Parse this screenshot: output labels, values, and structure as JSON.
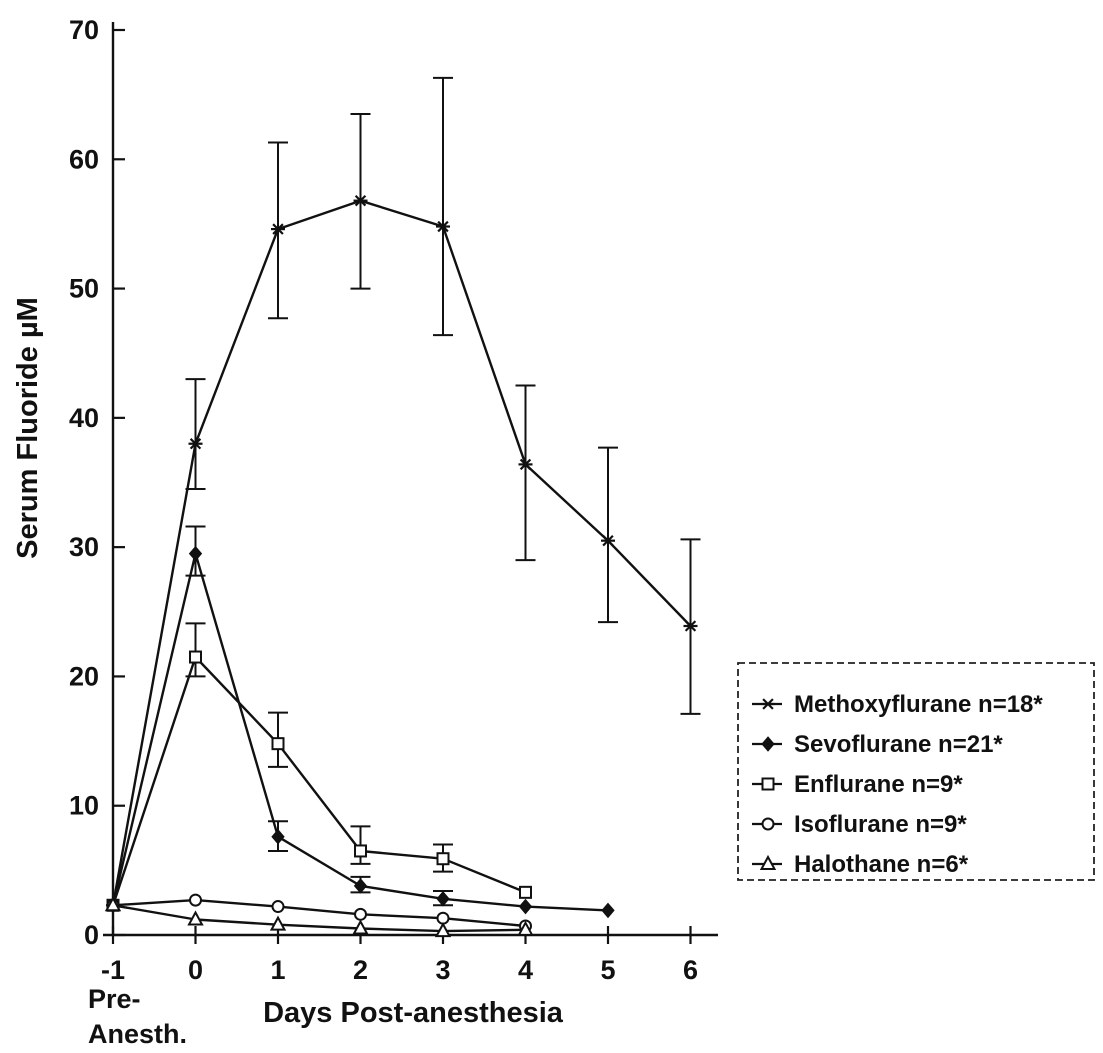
{
  "chart_data": {
    "type": "line",
    "title": "",
    "xlabel": "Days Post-anesthesia",
    "ylabel": "Serum Fluoride µM",
    "x_sub_label_line1": "Pre-",
    "x_sub_label_line2": "Anesth.",
    "xlim": [
      -1,
      6.5
    ],
    "ylim": [
      0,
      70
    ],
    "x_ticks": [
      -1,
      0,
      1,
      2,
      3,
      4,
      5,
      6
    ],
    "y_ticks": [
      0,
      10,
      20,
      30,
      40,
      50,
      60,
      70
    ],
    "grid": false,
    "legend_position": "right",
    "series": [
      {
        "name": "Methoxyflurane n=18*",
        "marker": "asterisk",
        "points": [
          {
            "x": -1,
            "y": 2.3
          },
          {
            "x": 0,
            "y": 38.0,
            "err_low": 34.5,
            "err_high": 43.0
          },
          {
            "x": 1,
            "y": 54.6,
            "err_low": 47.7,
            "err_high": 61.3
          },
          {
            "x": 2,
            "y": 56.8,
            "err_low": 50.0,
            "err_high": 63.5
          },
          {
            "x": 3,
            "y": 54.8,
            "err_low": 46.4,
            "err_high": 66.3
          },
          {
            "x": 4,
            "y": 36.4,
            "err_low": 29.0,
            "err_high": 42.5
          },
          {
            "x": 5,
            "y": 30.5,
            "err_low": 24.2,
            "err_high": 37.7
          },
          {
            "x": 6,
            "y": 23.9,
            "err_low": 17.1,
            "err_high": 30.6
          }
        ]
      },
      {
        "name": "Sevoflurane n=21*",
        "marker": "diamond",
        "points": [
          {
            "x": -1,
            "y": 2.3
          },
          {
            "x": 0,
            "y": 29.5,
            "err_low": 27.8,
            "err_high": 31.6
          },
          {
            "x": 1,
            "y": 7.6,
            "err_low": 6.5,
            "err_high": 8.8
          },
          {
            "x": 2,
            "y": 3.8,
            "err_low": 3.3,
            "err_high": 4.5
          },
          {
            "x": 3,
            "y": 2.8,
            "err_low": 2.3,
            "err_high": 3.4
          },
          {
            "x": 4,
            "y": 2.2
          },
          {
            "x": 5,
            "y": 1.9
          }
        ]
      },
      {
        "name": "Enflurane n=9*",
        "marker": "square",
        "points": [
          {
            "x": -1,
            "y": 2.3
          },
          {
            "x": 0,
            "y": 21.5,
            "err_low": 20.0,
            "err_high": 24.1
          },
          {
            "x": 1,
            "y": 14.8,
            "err_low": 13.0,
            "err_high": 17.2
          },
          {
            "x": 2,
            "y": 6.5,
            "err_low": 5.5,
            "err_high": 8.4
          },
          {
            "x": 3,
            "y": 5.9,
            "err_low": 4.9,
            "err_high": 7.0
          },
          {
            "x": 4,
            "y": 3.3
          }
        ]
      },
      {
        "name": "Isoflurane n=9*",
        "marker": "circle",
        "points": [
          {
            "x": -1,
            "y": 2.3
          },
          {
            "x": 0,
            "y": 2.7
          },
          {
            "x": 1,
            "y": 2.2
          },
          {
            "x": 2,
            "y": 1.6
          },
          {
            "x": 3,
            "y": 1.3
          },
          {
            "x": 4,
            "y": 0.7
          }
        ]
      },
      {
        "name": "Halothane n=6*",
        "marker": "triangle",
        "points": [
          {
            "x": -1,
            "y": 2.3
          },
          {
            "x": 0,
            "y": 1.2
          },
          {
            "x": 1,
            "y": 0.8
          },
          {
            "x": 2,
            "y": 0.5
          },
          {
            "x": 3,
            "y": 0.3
          },
          {
            "x": 4,
            "y": 0.4
          }
        ]
      }
    ]
  }
}
